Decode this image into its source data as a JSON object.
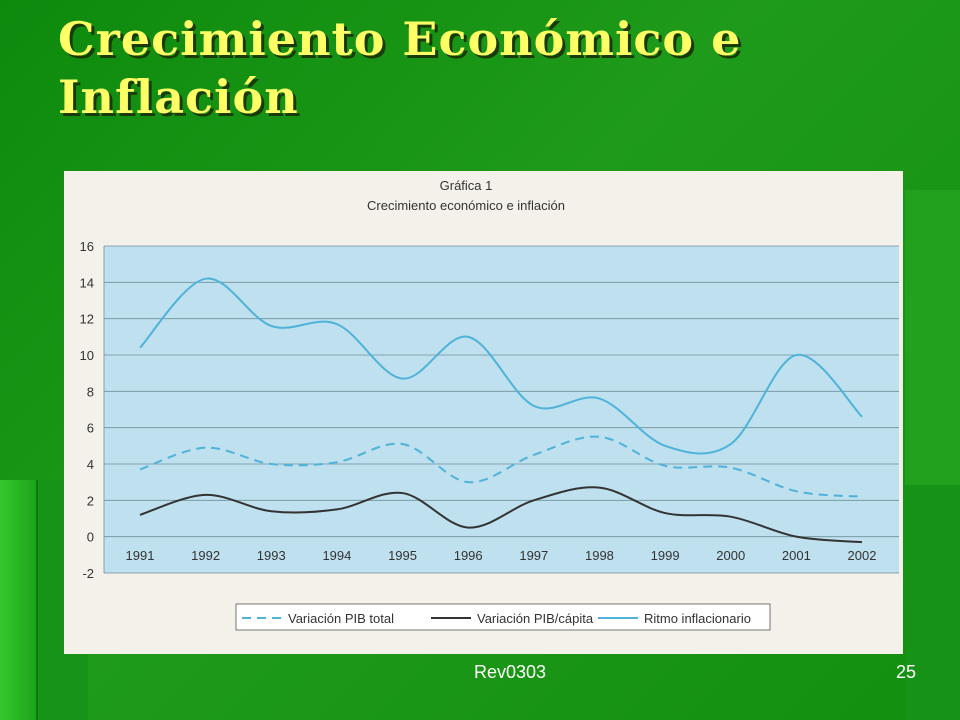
{
  "slide": {
    "title": "Crecimiento Económico e Inflación",
    "footer_left": "Rev0303",
    "page_number": "25"
  },
  "colors": {
    "background": "#1a9a1a",
    "title": "#ffff66",
    "plot_bg": "#bfe0ee",
    "pib_total": "#4fb3d9",
    "pib_capita": "#333333",
    "inflation": "#4fb3d9"
  },
  "chart_data": {
    "type": "line",
    "title": "Gráfica 1",
    "subtitle": "Crecimiento económico e inflación",
    "categories": [
      "1991",
      "1992",
      "1993",
      "1994",
      "1995",
      "1996",
      "1997",
      "1998",
      "1999",
      "2000",
      "2001",
      "2002"
    ],
    "ylim": [
      -2,
      16
    ],
    "yticks": [
      -2,
      0,
      2,
      4,
      6,
      8,
      10,
      12,
      14,
      16
    ],
    "grid": "horizontal",
    "legend_position": "bottom",
    "series": [
      {
        "name": "Variación PIB total",
        "style": "dashed",
        "values": [
          3.7,
          4.9,
          4.0,
          4.1,
          5.1,
          3.0,
          4.5,
          5.5,
          3.9,
          3.8,
          2.5,
          2.2
        ]
      },
      {
        "name": "Variación PIB/cápita",
        "style": "solid-dark",
        "values": [
          1.2,
          2.3,
          1.4,
          1.5,
          2.4,
          0.5,
          2.0,
          2.7,
          1.3,
          1.1,
          0.0,
          -0.3
        ]
      },
      {
        "name": "Ritmo inflacionario",
        "style": "solid-light",
        "values": [
          10.4,
          14.2,
          11.6,
          11.7,
          8.7,
          11.0,
          7.2,
          7.6,
          5.0,
          5.1,
          10.0,
          6.6
        ]
      }
    ]
  }
}
